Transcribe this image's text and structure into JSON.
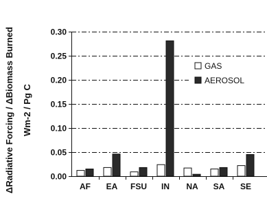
{
  "chart_data": {
    "type": "bar",
    "title": "",
    "xlabel": "",
    "ylabel": [
      "ΔRadiative Forcing / ΔBiomass Burned",
      "Wm-2 / Pg C"
    ],
    "categories": [
      "AF",
      "EA",
      "FSU",
      "IN",
      "NA",
      "SA",
      "SE"
    ],
    "series": [
      {
        "name": "GAS",
        "values": [
          0.012,
          0.018,
          0.009,
          0.024,
          0.017,
          0.015,
          0.022
        ],
        "color": "#ffffff"
      },
      {
        "name": "AEROSOL",
        "values": [
          0.015,
          0.046,
          0.018,
          0.281,
          0.004,
          0.018,
          0.045
        ],
        "color": "#2a2a2a"
      }
    ],
    "yticks": [
      "0.00",
      "0.05",
      "0.10",
      "0.15",
      "0.20",
      "0.25",
      "0.30"
    ],
    "ylim": [
      0,
      0.3
    ],
    "grid": "horizontal dash-dot",
    "legend_position": "right"
  }
}
